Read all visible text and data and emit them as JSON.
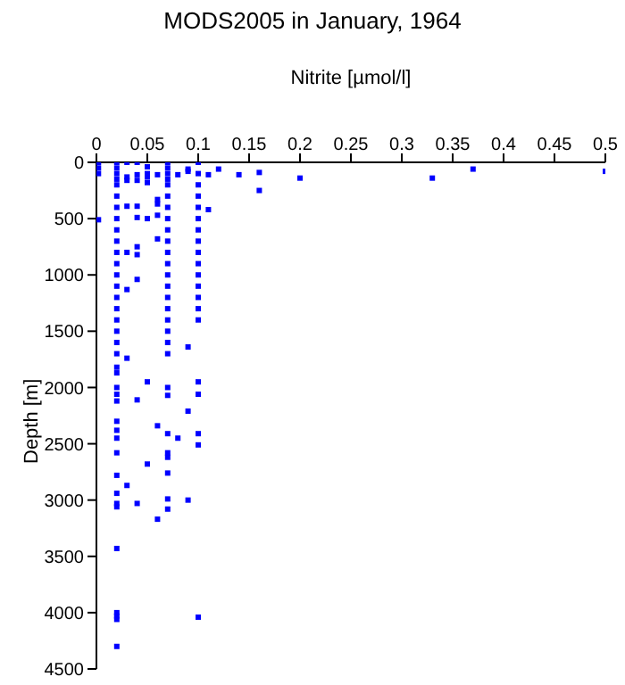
{
  "chart_data": {
    "type": "scatter",
    "title": "MODS2005 in January, 1964",
    "xlabel": "Nitrite [µmol/l]",
    "ylabel": "Depth [m]",
    "series": [
      {
        "color": "#0000ff",
        "x": [
          0.002,
          0.002,
          0.002,
          0.002,
          0.02,
          0.02,
          0.02,
          0.02,
          0.02,
          0.02,
          0.02,
          0.02,
          0.02,
          0.02,
          0.02,
          0.02,
          0.02,
          0.02,
          0.02,
          0.02,
          0.02,
          0.02,
          0.02,
          0.02,
          0.02,
          0.02,
          0.02,
          0.02,
          0.02,
          0.02,
          0.02,
          0.02,
          0.02,
          0.02,
          0.02,
          0.02,
          0.02,
          0.02,
          0.02,
          0.02,
          0.02,
          0.02,
          0.03,
          0.03,
          0.03,
          0.03,
          0.03,
          0.03,
          0.03,
          0.03,
          0.04,
          0.04,
          0.04,
          0.04,
          0.04,
          0.04,
          0.04,
          0.04,
          0.04,
          0.04,
          0.05,
          0.05,
          0.05,
          0.05,
          0.05,
          0.05,
          0.05,
          0.06,
          0.06,
          0.06,
          0.06,
          0.06,
          0.06,
          0.06,
          0.07,
          0.07,
          0.07,
          0.07,
          0.07,
          0.07,
          0.07,
          0.07,
          0.07,
          0.07,
          0.07,
          0.07,
          0.07,
          0.07,
          0.07,
          0.07,
          0.07,
          0.07,
          0.07,
          0.07,
          0.07,
          0.07,
          0.07,
          0.07,
          0.07,
          0.07,
          0.07,
          0.07,
          0.08,
          0.08,
          0.09,
          0.09,
          0.09,
          0.09,
          0.09,
          0.1,
          0.1,
          0.1,
          0.1,
          0.1,
          0.1,
          0.1,
          0.1,
          0.1,
          0.1,
          0.1,
          0.1,
          0.1,
          0.1,
          0.1,
          0.1,
          0.1,
          0.1,
          0.1,
          0.1,
          0.11,
          0.11,
          0.12,
          0.14,
          0.16,
          0.16,
          0.2,
          0.33,
          0.37,
          0.5
        ],
        "values": [
          0,
          50,
          100,
          510,
          0,
          50,
          100,
          150,
          200,
          300,
          400,
          500,
          600,
          700,
          800,
          900,
          1000,
          1100,
          1200,
          1300,
          1400,
          1500,
          1600,
          1700,
          1820,
          1870,
          2000,
          2060,
          2120,
          2300,
          2380,
          2450,
          2580,
          2780,
          2940,
          3030,
          3060,
          3430,
          4000,
          4030,
          4060,
          4300,
          0,
          130,
          160,
          390,
          800,
          1130,
          1740,
          2870,
          0,
          110,
          160,
          390,
          490,
          750,
          820,
          1040,
          2110,
          3030,
          40,
          100,
          130,
          180,
          500,
          1950,
          2680,
          110,
          330,
          370,
          470,
          680,
          2340,
          3170,
          0,
          50,
          100,
          150,
          200,
          300,
          400,
          500,
          600,
          700,
          800,
          900,
          1000,
          1100,
          1200,
          1300,
          1400,
          1500,
          1600,
          1700,
          2000,
          2070,
          2410,
          2580,
          2620,
          2760,
          2990,
          3080,
          110,
          2450,
          60,
          80,
          1640,
          2210,
          3000,
          0,
          100,
          200,
          300,
          400,
          500,
          600,
          700,
          800,
          900,
          1000,
          1100,
          1200,
          1300,
          1400,
          1950,
          2060,
          2410,
          2510,
          4040,
          110,
          420,
          60,
          110,
          90,
          250,
          140,
          140,
          60,
          80
        ]
      }
    ],
    "marker": "square",
    "legend": false,
    "grid": false,
    "xlim": [
      0,
      0.5
    ],
    "xticks": [
      0,
      0.05,
      0.1,
      0.15,
      0.2,
      0.25,
      0.3,
      0.35,
      0.4,
      0.45,
      0.5
    ],
    "ylim": [
      4500,
      0
    ],
    "yticks": [
      0,
      500,
      1000,
      1500,
      2000,
      2500,
      3000,
      3500,
      4000,
      4500
    ]
  }
}
